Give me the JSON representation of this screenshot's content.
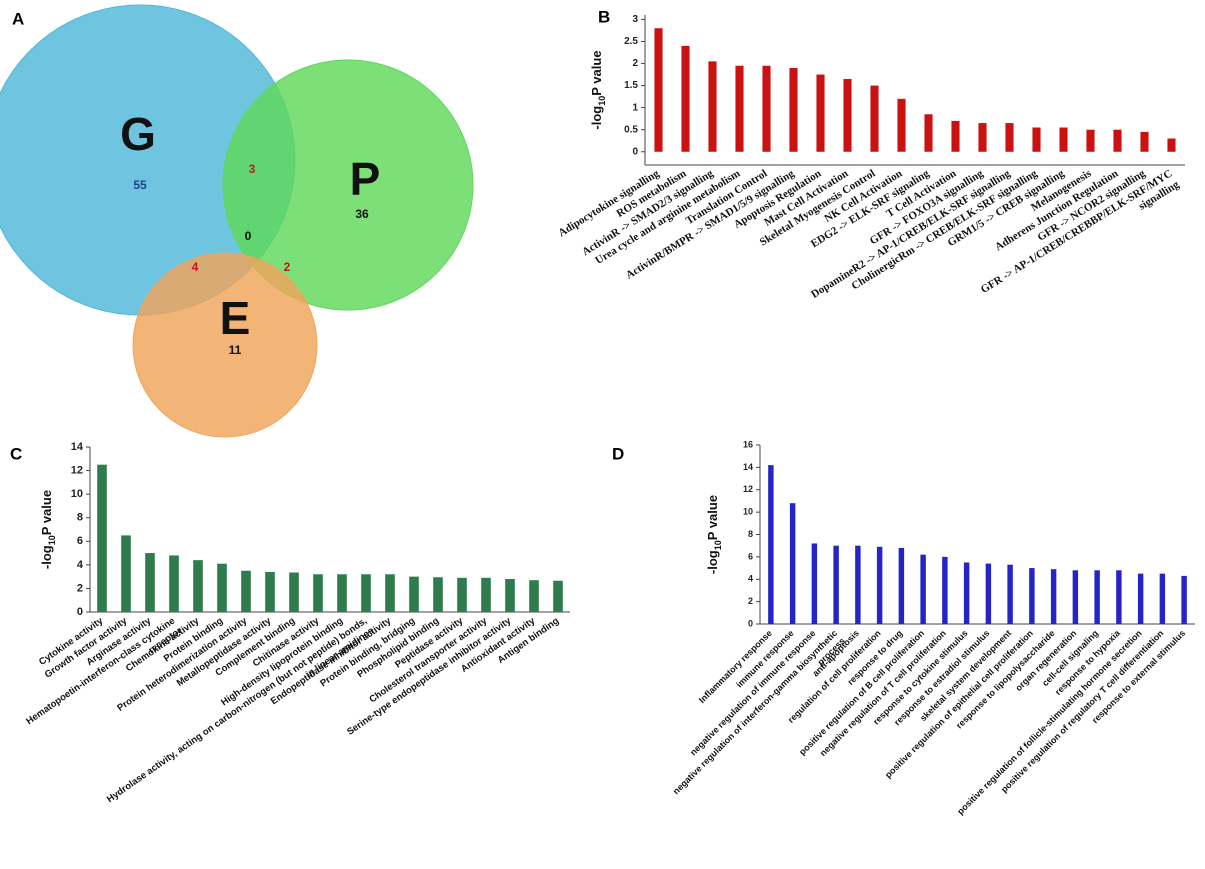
{
  "chart_data": [
    {
      "type": "venn",
      "panel": "A",
      "sets": [
        {
          "name": "G",
          "color": "#4fb8d9",
          "count": 55
        },
        {
          "name": "P",
          "color": "#5fd85a",
          "count": 36
        },
        {
          "name": "E",
          "color": "#f0a45a",
          "count": 11
        }
      ],
      "overlaps": [
        {
          "sets": [
            0,
            1
          ],
          "count": 3
        },
        {
          "sets": [
            0,
            2
          ],
          "count": 4
        },
        {
          "sets": [
            1,
            2
          ],
          "count": 2
        },
        {
          "sets": [
            0,
            1,
            2
          ],
          "count": 0
        }
      ]
    },
    {
      "type": "bar",
      "panel": "B",
      "y_label": [
        "-log",
        "10",
        "P value"
      ],
      "color": "#cc1111",
      "categories": [
        "Adipocytokine signalling",
        "ROS metabolism",
        "ActivinR -> SMAD2/3 signalling",
        "Urea cycle and arginine metabolism",
        "Translation Control",
        "ActivinR/BMPR -> SMAD1/5/9 signalling",
        "Apoptosis Regulation",
        "Mast Cell Activation",
        "Skeletal Myogenesis Control",
        "NK Cell Activation",
        "EDG2 -> ELK-SRF signaling",
        "T Cell Activation",
        "GFR -> FOXO3A signalling",
        "DopamineR2 -> AP-1/CREB/ELK-SRF signalling",
        "CholinergicRm -> CREB/ELK-SRF signalling",
        "GRM1/5 -> CREB signalling",
        "Melanogenesis",
        "Adherens Junction Regulation",
        "GFR -> NCOR2 signalling",
        [
          "GFR -> AP-1/CREB/CREBBP/ELK-SRF/MYC",
          "signalling"
        ]
      ],
      "values": [
        2.8,
        2.4,
        2.05,
        1.95,
        1.95,
        1.9,
        1.75,
        1.65,
        1.5,
        1.2,
        0.85,
        0.7,
        0.65,
        0.65,
        0.55,
        0.55,
        0.5,
        0.5,
        0.45,
        0.3
      ],
      "ylim": [
        -0.3,
        3.1
      ],
      "yticks": [
        0,
        0.5,
        1,
        1.5,
        2,
        2.5,
        3
      ]
    },
    {
      "type": "bar",
      "panel": "C",
      "y_label": [
        "-log",
        "10",
        "P value"
      ],
      "color": "#2e7d4f",
      "categories": [
        "Cytokine activity",
        "Growth factor activity",
        "Arginase activity",
        [
          "Hematopoetin-interferon-class cytokine",
          "receptor"
        ],
        "Chemokine activity",
        "Protein binding",
        "Protein heterodimerization activity",
        "Metallopeptidase activity",
        "Complement binding",
        "Chitinase activity",
        "High-density lipoprotein binding",
        [
          "Hydrolase activity, acting on carbon-nitrogen (but not peptide) bonds,",
          "in linear amidines"
        ],
        "Endopeptidase inhibitor activity",
        "Protein binding, bridging",
        "Phospholipid binding",
        "Peptidase activity",
        "Cholesterol transporter activity",
        "Serine-type endopeptidase inhibitor activity",
        "Antioxidant activity",
        "Antigen binding"
      ],
      "values": [
        12.5,
        6.5,
        5.0,
        4.8,
        4.4,
        4.1,
        3.5,
        3.4,
        3.35,
        3.2,
        3.2,
        3.2,
        3.2,
        3.0,
        2.95,
        2.9,
        2.9,
        2.8,
        2.7,
        2.65
      ],
      "ylim": [
        0,
        14
      ],
      "yticks": [
        0,
        2,
        4,
        6,
        8,
        10,
        12,
        14
      ]
    },
    {
      "type": "bar",
      "panel": "D",
      "y_label": [
        "-log",
        "10",
        "P value"
      ],
      "color": "#2424c8",
      "categories": [
        "Inflammatory response",
        "immune response",
        "negative regulation of immune response",
        [
          "negative regulation of interferon-gamma biosynthetic",
          "process"
        ],
        "anti-apoptosis",
        "regulation of cell proliferation",
        "response to drug",
        "positive regulation of B cell proliferation",
        "negative regulation of T cell proliferation",
        "response to cytokine stimulus",
        "response to estradiol stimulus",
        "skeletal system development",
        "positive regulation of epithelial cell proliferation",
        "response to lipopolysaccharide",
        "organ regeneration",
        "cell-cell signaling",
        "response to hypoxia",
        "positive regulation of follicle-stimulating hormone secretion",
        "positive regulation of regulatory T cell differentiation",
        "response to external stimulus"
      ],
      "values": [
        14.2,
        10.8,
        7.2,
        7.0,
        7.0,
        6.9,
        6.8,
        6.2,
        6.0,
        5.5,
        5.4,
        5.3,
        5.0,
        4.9,
        4.8,
        4.8,
        4.8,
        4.5,
        4.5,
        4.3
      ],
      "ylim": [
        0,
        16
      ],
      "yticks": [
        0,
        2,
        4,
        6,
        8,
        10,
        12,
        14,
        16
      ]
    }
  ]
}
